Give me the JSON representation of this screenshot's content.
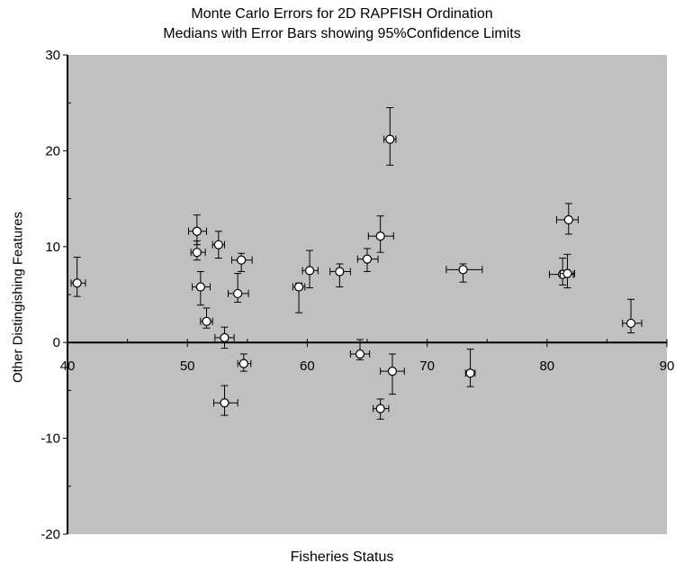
{
  "chart_data": {
    "type": "scatter",
    "title": "Monte Carlo Errors for 2D RAPFISH Ordination",
    "subtitle": "Medians with Error Bars showing 95%Confidence Limits",
    "xlabel": "Fisheries Status",
    "ylabel": "Other Distingishing Features",
    "xlim": [
      40,
      90
    ],
    "ylim": [
      -20,
      30
    ],
    "xticks": [
      40,
      50,
      60,
      70,
      80,
      90
    ],
    "yticks": [
      -20,
      -10,
      0,
      10,
      20,
      30
    ],
    "grid": false,
    "background": "#c0c0c0",
    "error_bars": "95% confidence limits",
    "points": [
      {
        "x": 40.8,
        "y": 6.2,
        "xlo": 40.3,
        "xhi": 41.5,
        "ylo": 4.8,
        "yhi": 8.9
      },
      {
        "x": 50.8,
        "y": 11.6,
        "xlo": 50.1,
        "xhi": 51.6,
        "ylo": 10.2,
        "yhi": 13.3
      },
      {
        "x": 50.8,
        "y": 9.4,
        "xlo": 50.3,
        "xhi": 51.5,
        "ylo": 8.6,
        "yhi": 10.6
      },
      {
        "x": 51.1,
        "y": 5.8,
        "xlo": 50.4,
        "xhi": 51.9,
        "ylo": 3.9,
        "yhi": 7.4
      },
      {
        "x": 51.6,
        "y": 2.2,
        "xlo": 51.1,
        "xhi": 52.1,
        "ylo": 1.5,
        "yhi": 3.6
      },
      {
        "x": 52.6,
        "y": 10.2,
        "xlo": 52.1,
        "xhi": 53.1,
        "ylo": 8.8,
        "yhi": 11.6
      },
      {
        "x": 53.1,
        "y": 0.5,
        "xlo": 52.3,
        "xhi": 53.9,
        "ylo": -0.6,
        "yhi": 1.6
      },
      {
        "x": 53.1,
        "y": -6.3,
        "xlo": 52.2,
        "xhi": 54.2,
        "ylo": -7.6,
        "yhi": -4.5
      },
      {
        "x": 54.2,
        "y": 5.1,
        "xlo": 53.4,
        "xhi": 55.1,
        "ylo": 4.2,
        "yhi": 7.2
      },
      {
        "x": 54.5,
        "y": 8.6,
        "xlo": 53.7,
        "xhi": 55.4,
        "ylo": 7.4,
        "yhi": 9.3
      },
      {
        "x": 54.7,
        "y": -2.2,
        "xlo": 54.2,
        "xhi": 55.3,
        "ylo": -3.0,
        "yhi": -1.2
      },
      {
        "x": 59.3,
        "y": 5.8,
        "xlo": 58.8,
        "xhi": 59.8,
        "ylo": 3.1,
        "yhi": 6.2
      },
      {
        "x": 60.2,
        "y": 7.5,
        "xlo": 59.6,
        "xhi": 60.9,
        "ylo": 5.7,
        "yhi": 9.6
      },
      {
        "x": 62.7,
        "y": 7.4,
        "xlo": 61.9,
        "xhi": 63.6,
        "ylo": 5.8,
        "yhi": 8.2
      },
      {
        "x": 64.4,
        "y": -1.2,
        "xlo": 63.6,
        "xhi": 65.2,
        "ylo": -1.8,
        "yhi": 0.3
      },
      {
        "x": 65.0,
        "y": 8.7,
        "xlo": 64.2,
        "xhi": 65.9,
        "ylo": 7.4,
        "yhi": 9.8
      },
      {
        "x": 66.1,
        "y": 11.1,
        "xlo": 65.1,
        "xhi": 67.2,
        "ylo": 9.4,
        "yhi": 13.2
      },
      {
        "x": 66.1,
        "y": -6.9,
        "xlo": 65.5,
        "xhi": 66.8,
        "ylo": -8.0,
        "yhi": -5.9
      },
      {
        "x": 66.9,
        "y": 21.2,
        "xlo": 66.4,
        "xhi": 67.4,
        "ylo": 18.5,
        "yhi": 24.5
      },
      {
        "x": 67.1,
        "y": -3.0,
        "xlo": 66.1,
        "xhi": 68.1,
        "ylo": -5.4,
        "yhi": -1.2
      },
      {
        "x": 73.0,
        "y": 7.6,
        "xlo": 71.6,
        "xhi": 74.6,
        "ylo": 6.3,
        "yhi": 8.2
      },
      {
        "x": 73.6,
        "y": -3.2,
        "xlo": 73.2,
        "xhi": 74.0,
        "ylo": -4.6,
        "yhi": -0.7
      },
      {
        "x": 81.3,
        "y": 7.1,
        "xlo": 80.2,
        "xhi": 82.2,
        "ylo": 6.0,
        "yhi": 8.8
      },
      {
        "x": 81.7,
        "y": 7.2,
        "xlo": 81.1,
        "xhi": 82.3,
        "ylo": 5.7,
        "yhi": 9.2
      },
      {
        "x": 81.8,
        "y": 12.8,
        "xlo": 80.8,
        "xhi": 82.6,
        "ylo": 11.3,
        "yhi": 14.5
      },
      {
        "x": 87.0,
        "y": 2.0,
        "xlo": 86.3,
        "xhi": 87.9,
        "ylo": 1.0,
        "yhi": 4.5
      }
    ]
  }
}
